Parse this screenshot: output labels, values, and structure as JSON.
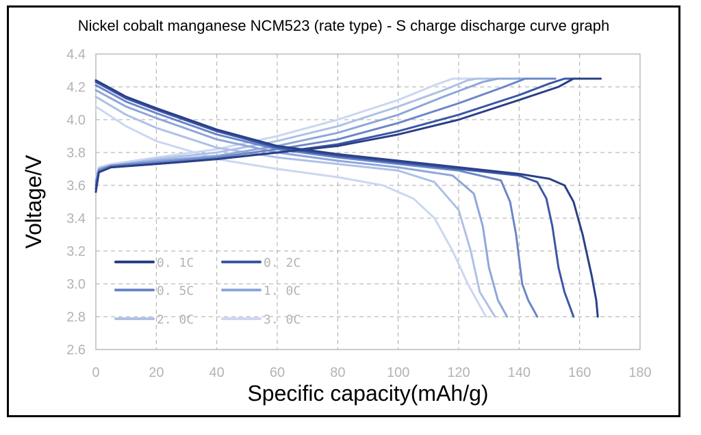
{
  "chart_data": {
    "type": "line",
    "title": "Nickel cobalt manganese NCM523 (rate type) - S charge discharge curve graph",
    "xlabel": "Specific capacity(mAh/g)",
    "ylabel": "Voltage/V",
    "xlim": [
      0,
      180
    ],
    "ylim": [
      2.6,
      4.4
    ],
    "xticks": [
      "0",
      "20",
      "40",
      "60",
      "80",
      "100",
      "120",
      "140",
      "160",
      "180"
    ],
    "yticks": [
      "2.6",
      "2.8",
      "3.0",
      "3.2",
      "3.4",
      "3.6",
      "3.8",
      "4.0",
      "4.2",
      "4.4"
    ],
    "grid": true,
    "legend_position": "bottom-left",
    "series": [
      {
        "name": "0. 1C",
        "color": "#2a3f86",
        "charge": [
          [
            0,
            3.56
          ],
          [
            1,
            3.68
          ],
          [
            5,
            3.71
          ],
          [
            20,
            3.73
          ],
          [
            40,
            3.76
          ],
          [
            60,
            3.8
          ],
          [
            80,
            3.84
          ],
          [
            100,
            3.91
          ],
          [
            120,
            4.0
          ],
          [
            140,
            4.12
          ],
          [
            153,
            4.2
          ],
          [
            158,
            4.25
          ],
          [
            167,
            4.25
          ]
        ],
        "discharge": [
          [
            0,
            4.24
          ],
          [
            10,
            4.14
          ],
          [
            20,
            4.07
          ],
          [
            40,
            3.94
          ],
          [
            60,
            3.84
          ],
          [
            80,
            3.79
          ],
          [
            100,
            3.75
          ],
          [
            120,
            3.71
          ],
          [
            140,
            3.67
          ],
          [
            150,
            3.64
          ],
          [
            155,
            3.6
          ],
          [
            158,
            3.5
          ],
          [
            161,
            3.3
          ],
          [
            164,
            3.05
          ],
          [
            165.5,
            2.9
          ],
          [
            166,
            2.8
          ]
        ]
      },
      {
        "name": "0. 2C",
        "color": "#3a56a6",
        "charge": [
          [
            0,
            3.58
          ],
          [
            1,
            3.68
          ],
          [
            5,
            3.71
          ],
          [
            20,
            3.73
          ],
          [
            40,
            3.76
          ],
          [
            60,
            3.8
          ],
          [
            80,
            3.85
          ],
          [
            100,
            3.93
          ],
          [
            120,
            4.03
          ],
          [
            140,
            4.15
          ],
          [
            150,
            4.22
          ],
          [
            155,
            4.25
          ],
          [
            160,
            4.25
          ]
        ],
        "discharge": [
          [
            0,
            4.23
          ],
          [
            10,
            4.13
          ],
          [
            20,
            4.06
          ],
          [
            40,
            3.93
          ],
          [
            60,
            3.83
          ],
          [
            80,
            3.78
          ],
          [
            100,
            3.74
          ],
          [
            120,
            3.7
          ],
          [
            140,
            3.66
          ],
          [
            146,
            3.62
          ],
          [
            149,
            3.52
          ],
          [
            151,
            3.35
          ],
          [
            153,
            3.1
          ],
          [
            155,
            2.95
          ],
          [
            158,
            2.8
          ]
        ]
      },
      {
        "name": "0. 5C",
        "color": "#6b86c8",
        "charge": [
          [
            0,
            3.6
          ],
          [
            1,
            3.69
          ],
          [
            5,
            3.72
          ],
          [
            20,
            3.74
          ],
          [
            40,
            3.77
          ],
          [
            60,
            3.82
          ],
          [
            80,
            3.88
          ],
          [
            100,
            3.98
          ],
          [
            120,
            4.1
          ],
          [
            135,
            4.2
          ],
          [
            142,
            4.25
          ],
          [
            152,
            4.25
          ]
        ],
        "discharge": [
          [
            0,
            4.21
          ],
          [
            10,
            4.11
          ],
          [
            20,
            4.04
          ],
          [
            40,
            3.91
          ],
          [
            60,
            3.82
          ],
          [
            80,
            3.77
          ],
          [
            100,
            3.73
          ],
          [
            120,
            3.69
          ],
          [
            134,
            3.63
          ],
          [
            137,
            3.5
          ],
          [
            139,
            3.3
          ],
          [
            141,
            3.0
          ],
          [
            143,
            2.9
          ],
          [
            146,
            2.8
          ]
        ]
      },
      {
        "name": "1. 0C",
        "color": "#8ea6da",
        "charge": [
          [
            0,
            3.62
          ],
          [
            1,
            3.7
          ],
          [
            5,
            3.72
          ],
          [
            20,
            3.75
          ],
          [
            40,
            3.78
          ],
          [
            60,
            3.84
          ],
          [
            80,
            3.92
          ],
          [
            100,
            4.03
          ],
          [
            115,
            4.14
          ],
          [
            128,
            4.23
          ],
          [
            133,
            4.25
          ],
          [
            146,
            4.25
          ]
        ],
        "discharge": [
          [
            0,
            4.18
          ],
          [
            10,
            4.08
          ],
          [
            20,
            4.01
          ],
          [
            40,
            3.88
          ],
          [
            60,
            3.8
          ],
          [
            80,
            3.75
          ],
          [
            100,
            3.71
          ],
          [
            118,
            3.66
          ],
          [
            125,
            3.55
          ],
          [
            128,
            3.35
          ],
          [
            130,
            3.1
          ],
          [
            133,
            2.9
          ],
          [
            136,
            2.8
          ]
        ]
      },
      {
        "name": "2. 0C",
        "color": "#adc0e6",
        "charge": [
          [
            0,
            3.63
          ],
          [
            1,
            3.7
          ],
          [
            5,
            3.72
          ],
          [
            20,
            3.76
          ],
          [
            40,
            3.8
          ],
          [
            60,
            3.87
          ],
          [
            80,
            3.96
          ],
          [
            100,
            4.08
          ],
          [
            115,
            4.18
          ],
          [
            123,
            4.24
          ],
          [
            126,
            4.25
          ],
          [
            140,
            4.25
          ]
        ],
        "discharge": [
          [
            0,
            4.14
          ],
          [
            10,
            4.03
          ],
          [
            20,
            3.95
          ],
          [
            40,
            3.83
          ],
          [
            60,
            3.77
          ],
          [
            80,
            3.73
          ],
          [
            100,
            3.69
          ],
          [
            112,
            3.62
          ],
          [
            120,
            3.45
          ],
          [
            124,
            3.2
          ],
          [
            127,
            2.95
          ],
          [
            132,
            2.8
          ]
        ]
      },
      {
        "name": "3. 0C",
        "color": "#cbd7f0",
        "charge": [
          [
            0,
            3.64
          ],
          [
            1,
            3.71
          ],
          [
            5,
            3.73
          ],
          [
            20,
            3.77
          ],
          [
            40,
            3.82
          ],
          [
            60,
            3.9
          ],
          [
            80,
            4.0
          ],
          [
            100,
            4.12
          ],
          [
            112,
            4.21
          ],
          [
            118,
            4.25
          ],
          [
            134,
            4.25
          ]
        ],
        "discharge": [
          [
            0,
            4.08
          ],
          [
            10,
            3.96
          ],
          [
            20,
            3.87
          ],
          [
            40,
            3.76
          ],
          [
            60,
            3.7
          ],
          [
            80,
            3.65
          ],
          [
            95,
            3.6
          ],
          [
            105,
            3.52
          ],
          [
            112,
            3.4
          ],
          [
            118,
            3.2
          ],
          [
            123,
            3.0
          ],
          [
            126,
            2.9
          ],
          [
            129,
            2.8
          ]
        ]
      }
    ]
  }
}
